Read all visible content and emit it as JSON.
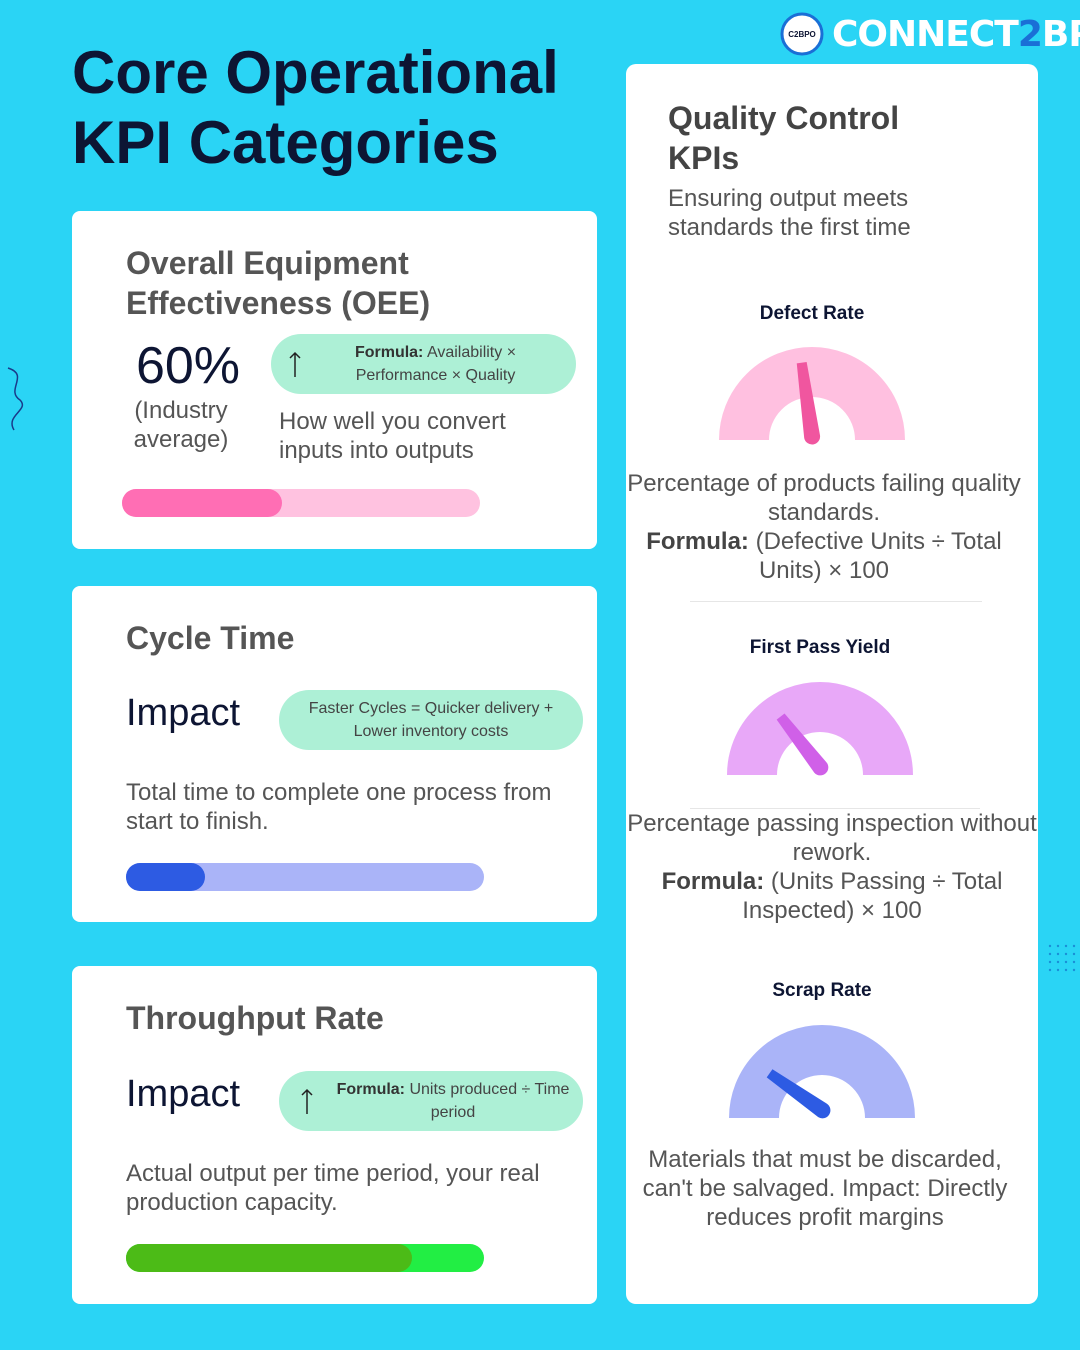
{
  "brand": {
    "logo_text": "C2BPO",
    "name_part1": "CONNECT",
    "name_part2": "2",
    "name_part3": "BPO"
  },
  "title": "Core Operational KPI Categories",
  "cards": [
    {
      "title": "Overall Equipment Effectiveness (OEE)",
      "stat": "60%",
      "stat_note": "(Industry average)",
      "formula_label": "Formula:",
      "formula": "Availability × Performance × Quality",
      "description": "How well you convert inputs into outputs"
    },
    {
      "title": "Cycle Time",
      "impact_label": "Impact",
      "pill": "Faster Cycles = Quicker delivery + Lower inventory costs",
      "description": "Total time to complete one process from start to finish."
    },
    {
      "title": "Throughput Rate",
      "impact_label": "Impact",
      "formula_label": "Formula:",
      "formula": "Units produced ÷ Time period",
      "description": "Actual output per time period, your real production capacity."
    }
  ],
  "quality": {
    "title": "Quality Control KPIs",
    "subtitle": "Ensuring output meets standards the first time",
    "gauges": [
      {
        "name": "Defect Rate",
        "description": "Percentage of products failing quality standards.",
        "formula_label": "Formula:",
        "formula": "(Defective Units ÷ Total Units) × 100"
      },
      {
        "name": "First Pass Yield",
        "description": "Percentage passing inspection without rework.",
        "formula_label": "Formula:",
        "formula": "(Units Passing ÷ Total Inspected) × 100"
      },
      {
        "name": "Scrap Rate",
        "description": "Materials that must be discarded, can't be salvaged. Impact: Directly reduces profit margins"
      }
    ]
  }
}
